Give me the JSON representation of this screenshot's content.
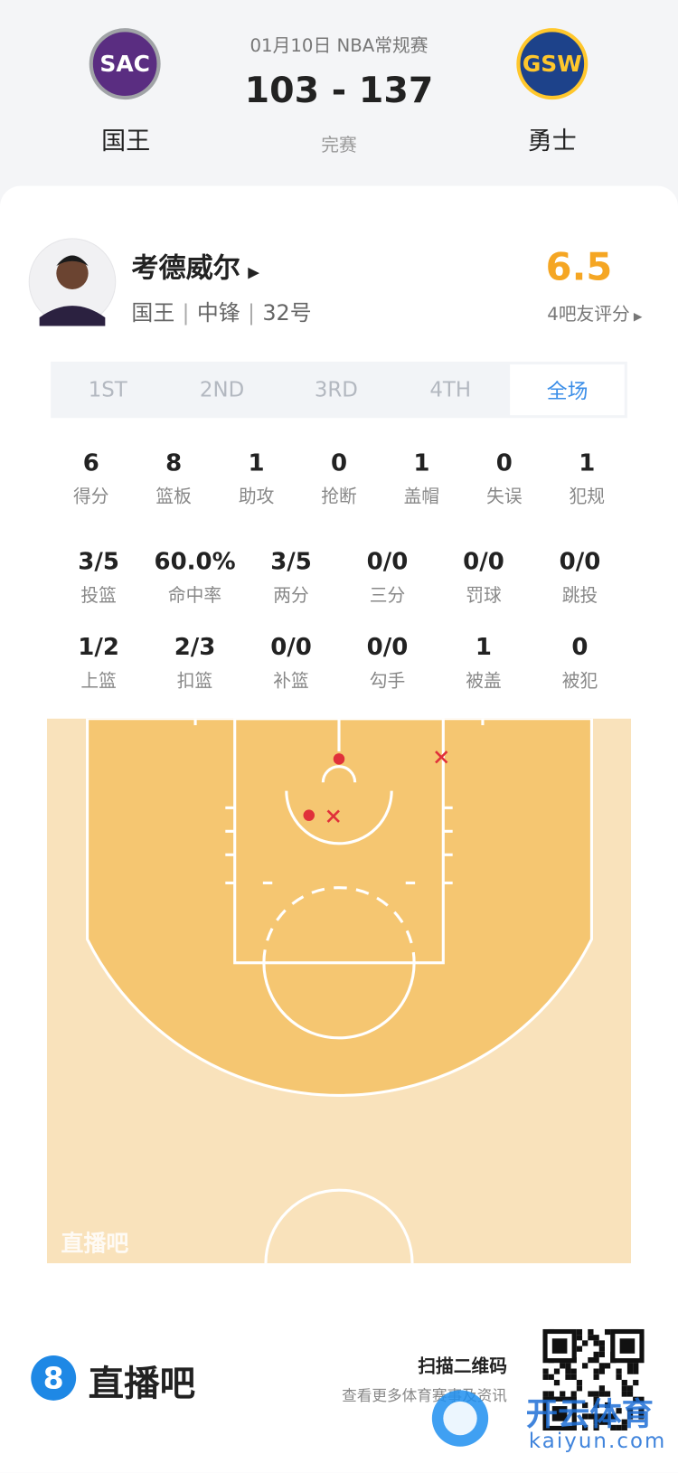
{
  "header": {
    "date": "01月10日 NBA常规赛",
    "score": "103 - 137",
    "status": "完赛",
    "home": {
      "logo": "SAC",
      "name": "国王"
    },
    "away": {
      "logo": "GSW",
      "name": "勇士"
    }
  },
  "player": {
    "name": "考德威尔",
    "team": "国王",
    "position": "中锋",
    "number": "32号",
    "rating": "6.5",
    "rating_label": "4吧友评分"
  },
  "tabs": [
    "1ST",
    "2ND",
    "3RD",
    "4TH",
    "全场"
  ],
  "stats": [
    [
      {
        "value": "6",
        "label": "得分"
      },
      {
        "value": "8",
        "label": "篮板"
      },
      {
        "value": "1",
        "label": "助攻"
      },
      {
        "value": "0",
        "label": "抢断"
      },
      {
        "value": "1",
        "label": "盖帽"
      },
      {
        "value": "0",
        "label": "失误"
      },
      {
        "value": "1",
        "label": "犯规"
      }
    ],
    [
      {
        "value": "3/5",
        "label": "投篮"
      },
      {
        "value": "60.0%",
        "label": "命中率"
      },
      {
        "value": "3/5",
        "label": "两分"
      },
      {
        "value": "0/0",
        "label": "三分"
      },
      {
        "value": "0/0",
        "label": "罚球"
      },
      {
        "value": "0/0",
        "label": "跳投"
      }
    ],
    [
      {
        "value": "1/2",
        "label": "上篮"
      },
      {
        "value": "2/3",
        "label": "扣篮"
      },
      {
        "value": "0/0",
        "label": "补篮"
      },
      {
        "value": "0/0",
        "label": "勾手"
      },
      {
        "value": "1",
        "label": "被盖"
      },
      {
        "value": "0",
        "label": "被犯"
      }
    ]
  ],
  "court_watermark": "直播吧",
  "footer": {
    "logo": "8",
    "brand": "直播吧",
    "scan": "扫描二维码",
    "more": "查看更多体育赛事及资讯"
  },
  "watermark": {
    "name": "开云体育",
    "url": "kaiyun.com"
  }
}
